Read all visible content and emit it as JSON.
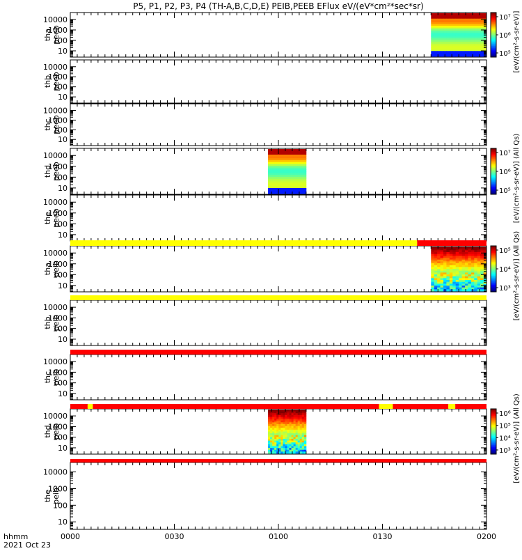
{
  "title": "P5, P1, P2, P3, P4 (TH-A,B,C,D,E) PEIB,PEEB EFlux eV/(eV*cm²*sec*sr)",
  "footer": {
    "time_label": "hhmm",
    "date_label": "2021 Oct 23",
    "x_ticks": [
      "0000",
      "0030",
      "0100",
      "0130",
      "0200"
    ]
  },
  "colorbar_labels": {
    "electron_top": "[eV/(cm²-s-sr-eV)]",
    "electron_mid": "[eV/(cm²-s-sr-eV)] (All Qs)",
    "ion_mid": "[eV/(cm²-s-sr-eV)] (All Qs)",
    "ion_bottom": "[eV/(cm²-s-sr-eV)] (All Qs)"
  },
  "chart_data": {
    "type": "heatmap",
    "x_range_minutes": [
      0,
      120
    ],
    "y_scale": "log",
    "y_tick_labels": [
      "10",
      "100",
      "1000",
      "10000"
    ],
    "panels": [
      {
        "label_probe": "tha",
        "label_product": "peeb",
        "data_interval_minutes": [
          104,
          120
        ],
        "colorbar": {
          "ticks": [
            "10⁵",
            "10⁶",
            "10⁷"
          ],
          "label_key": "electron_top"
        }
      },
      {
        "label_probe": "thb",
        "label_product": "peeb",
        "data_interval_minutes": null
      },
      {
        "label_probe": "thc",
        "label_product": "peeb",
        "data_interval_minutes": null
      },
      {
        "label_probe": "thd",
        "label_product": "peeb",
        "data_interval_minutes": [
          57,
          68
        ],
        "colorbar": {
          "ticks": [
            "10⁵",
            "10⁶",
            "10⁷"
          ],
          "label_key": "electron_mid"
        }
      },
      {
        "label_probe": "the",
        "label_product": "peeb",
        "data_interval_minutes": null
      },
      {
        "label_probe": "tha",
        "label_product": "peib",
        "data_interval_minutes": [
          104,
          120
        ],
        "colorbar": {
          "ticks": [
            "10³",
            "10⁴",
            "10⁵"
          ],
          "label_key": "ion_mid"
        }
      },
      {
        "label_probe": "thb",
        "label_product": "peib",
        "data_interval_minutes": null
      },
      {
        "label_probe": "thc",
        "label_product": "peib",
        "data_interval_minutes": null
      },
      {
        "label_probe": "thd",
        "label_product": "peib",
        "data_interval_minutes": [
          57,
          68
        ],
        "colorbar": {
          "ticks": [
            "10³",
            "10⁴",
            "10⁵",
            "10⁶"
          ],
          "label_key": "ion_bottom"
        }
      },
      {
        "label_probe": "the",
        "label_product": "peib",
        "data_interval_minutes": null
      }
    ],
    "status_bars": [
      {
        "segments": [
          {
            "from": 0,
            "to": 100,
            "color": "#ffff00"
          },
          {
            "from": 100,
            "to": 120,
            "color": "#ff0000"
          }
        ]
      },
      {
        "segments": [
          {
            "from": 0,
            "to": 120,
            "color": "#ffff00"
          }
        ]
      },
      {
        "segments": [
          {
            "from": 0,
            "to": 120,
            "color": "#ff0000"
          }
        ]
      },
      {
        "segments": [
          {
            "from": 0,
            "to": 5,
            "color": "#ff0000"
          },
          {
            "from": 5,
            "to": 6.5,
            "color": "#ffff00"
          },
          {
            "from": 6.5,
            "to": 89,
            "color": "#ff0000"
          },
          {
            "from": 89,
            "to": 93,
            "color": "#ffff00"
          },
          {
            "from": 93,
            "to": 109,
            "color": "#ff0000"
          },
          {
            "from": 109,
            "to": 111,
            "color": "#ffff00"
          },
          {
            "from": 111,
            "to": 120,
            "color": "#ff0000"
          }
        ]
      },
      {
        "segments": [
          {
            "from": 0,
            "to": 120,
            "color": "#ff0000"
          }
        ]
      }
    ]
  }
}
